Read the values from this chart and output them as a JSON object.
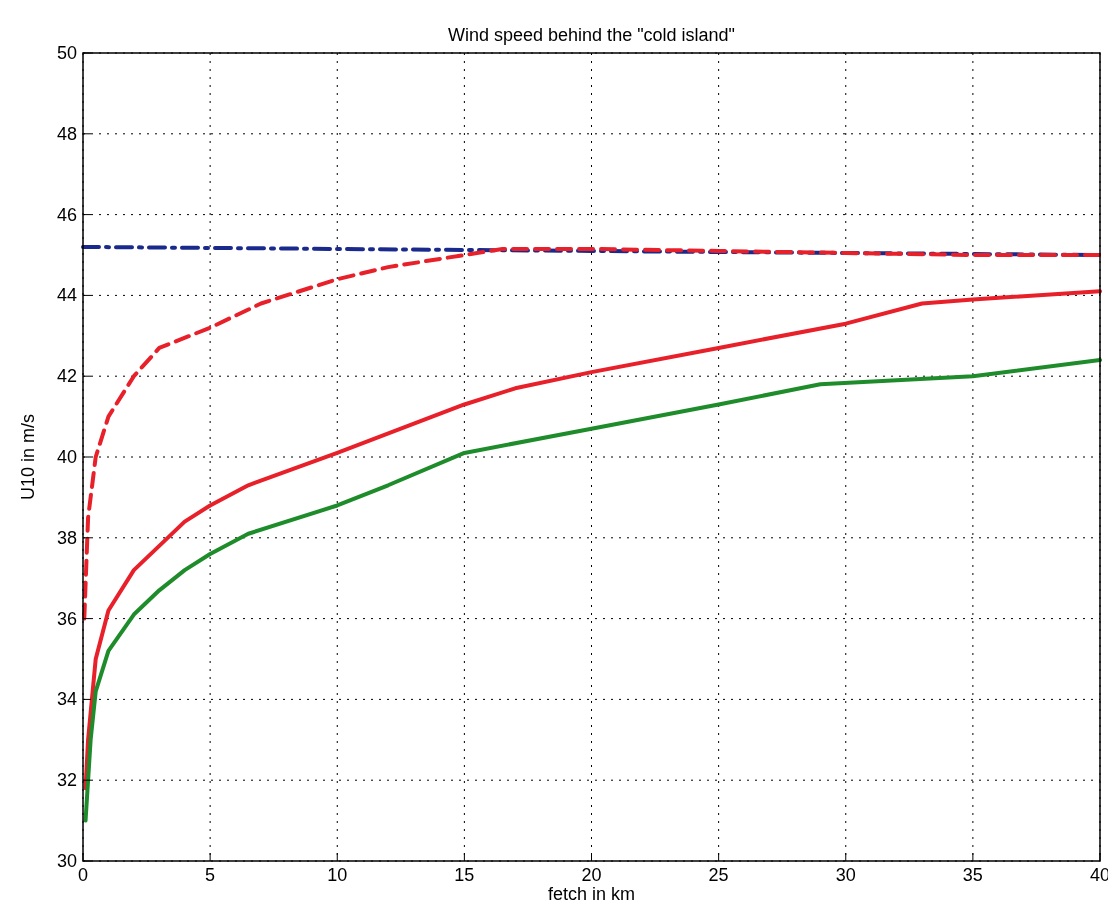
{
  "chart_data": {
    "type": "line",
    "title": "Wind speed behind the \"cold island\"",
    "xlabel": "fetch in km",
    "ylabel": "U10 in m/s",
    "xlim": [
      0,
      40
    ],
    "xticks": [
      0,
      5,
      10,
      15,
      20,
      25,
      30,
      35,
      40
    ],
    "ylim": [
      30,
      50
    ],
    "yticks": [
      30,
      32,
      34,
      36,
      38,
      40,
      42,
      44,
      46,
      48,
      50
    ],
    "grid": true,
    "series": [
      {
        "color": "#1a2a8c",
        "line_style": "dashdot",
        "x": [
          0,
          10,
          20,
          30,
          40
        ],
        "values": [
          45.2,
          45.15,
          45.1,
          45.05,
          45.0
        ]
      },
      {
        "color": "#e8202a",
        "line_style": "dashed",
        "x": [
          0.05,
          0.2,
          0.5,
          1,
          2,
          3,
          5,
          7,
          10,
          12,
          15,
          16.5,
          20,
          25,
          30,
          35,
          40
        ],
        "values": [
          36,
          38.5,
          40,
          41,
          42,
          42.7,
          43.2,
          43.8,
          44.4,
          44.7,
          45.0,
          45.15,
          45.15,
          45.1,
          45.05,
          45.0,
          45.0
        ]
      },
      {
        "color": "#e8202a",
        "line_style": "solid",
        "x": [
          0.1,
          0.2,
          0.5,
          1,
          2,
          3,
          4,
          5,
          6.5,
          10,
          15,
          17,
          20,
          25,
          30,
          33,
          35,
          40
        ],
        "values": [
          31.8,
          33,
          35,
          36.2,
          37.2,
          37.8,
          38.4,
          38.8,
          39.3,
          40.1,
          41.3,
          41.7,
          42.1,
          42.7,
          43.3,
          43.8,
          43.9,
          44.1
        ]
      },
      {
        "color": "#1e8c2a",
        "line_style": "solid",
        "x": [
          0.1,
          0.3,
          0.5,
          1,
          2,
          3,
          4,
          5,
          6.5,
          10,
          12,
          15,
          20,
          25,
          29,
          35,
          40
        ],
        "values": [
          31,
          33,
          34.2,
          35.2,
          36.1,
          36.7,
          37.2,
          37.6,
          38.1,
          38.8,
          39.3,
          40.1,
          40.7,
          41.3,
          41.8,
          42,
          42.4
        ]
      }
    ]
  }
}
